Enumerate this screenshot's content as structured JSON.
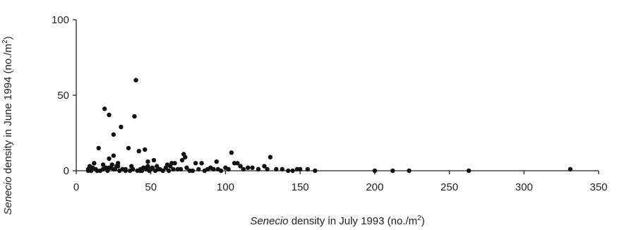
{
  "chart_data": {
    "type": "scatter",
    "title": "",
    "xlabel_italic": "Senecio",
    "xlabel_rest": " density in July 1993 (no./m",
    "xlabel_sup": "2",
    "xlabel_close": ")",
    "ylabel_italic": "Senecio",
    "ylabel_rest": " density in June 1994 (no./m",
    "ylabel_sup": "2",
    "ylabel_close": ")",
    "xlim": [
      0,
      350
    ],
    "ylim": [
      0,
      100
    ],
    "xticks": [
      0,
      50,
      100,
      150,
      200,
      250,
      300,
      350
    ],
    "yticks": [
      0,
      50,
      100
    ],
    "grid": false,
    "marker_color": "#111111",
    "x": [
      8,
      9,
      10,
      11,
      12,
      13,
      14,
      15,
      16,
      18,
      19,
      20,
      21,
      22,
      22,
      23,
      24,
      25,
      25,
      26,
      27,
      28,
      29,
      30,
      31,
      33,
      35,
      36,
      37,
      38,
      39,
      40,
      41,
      42,
      43,
      44,
      45,
      46,
      47,
      48,
      48,
      49,
      50,
      51,
      52,
      53,
      54,
      55,
      56,
      58,
      60,
      61,
      62,
      63,
      64,
      65,
      66,
      68,
      70,
      71,
      72,
      73,
      74,
      76,
      78,
      80,
      82,
      84,
      86,
      88,
      90,
      92,
      94,
      95,
      97,
      100,
      102,
      104,
      106,
      108,
      110,
      112,
      115,
      118,
      122,
      126,
      128,
      130,
      134,
      138,
      142,
      145,
      148,
      150,
      155,
      160,
      200,
      212,
      223,
      263,
      331,
      8,
      18,
      22,
      25,
      28,
      33,
      43,
      47
    ],
    "y": [
      1,
      3,
      0,
      2,
      5,
      1,
      0,
      15,
      0,
      4,
      41,
      2,
      0,
      37,
      8,
      2,
      4,
      24,
      10,
      1,
      3,
      5,
      0,
      29,
      1,
      0,
      15,
      0,
      3,
      1,
      36,
      60,
      0,
      13,
      1,
      0,
      2,
      14,
      1,
      3,
      6,
      0,
      1,
      2,
      7,
      0,
      3,
      1,
      1,
      0,
      2,
      4,
      0,
      3,
      5,
      1,
      5,
      1,
      1,
      7,
      11,
      9,
      2,
      0,
      0,
      5,
      1,
      5,
      0,
      1,
      2,
      1,
      6,
      1,
      0,
      2,
      1,
      12,
      5,
      5,
      3,
      1,
      2,
      2,
      1,
      3,
      1,
      9,
      1,
      1,
      0,
      0,
      1,
      1,
      1,
      0,
      0,
      0,
      0,
      0,
      1,
      0,
      1,
      2,
      1,
      3,
      1,
      0,
      2
    ]
  }
}
